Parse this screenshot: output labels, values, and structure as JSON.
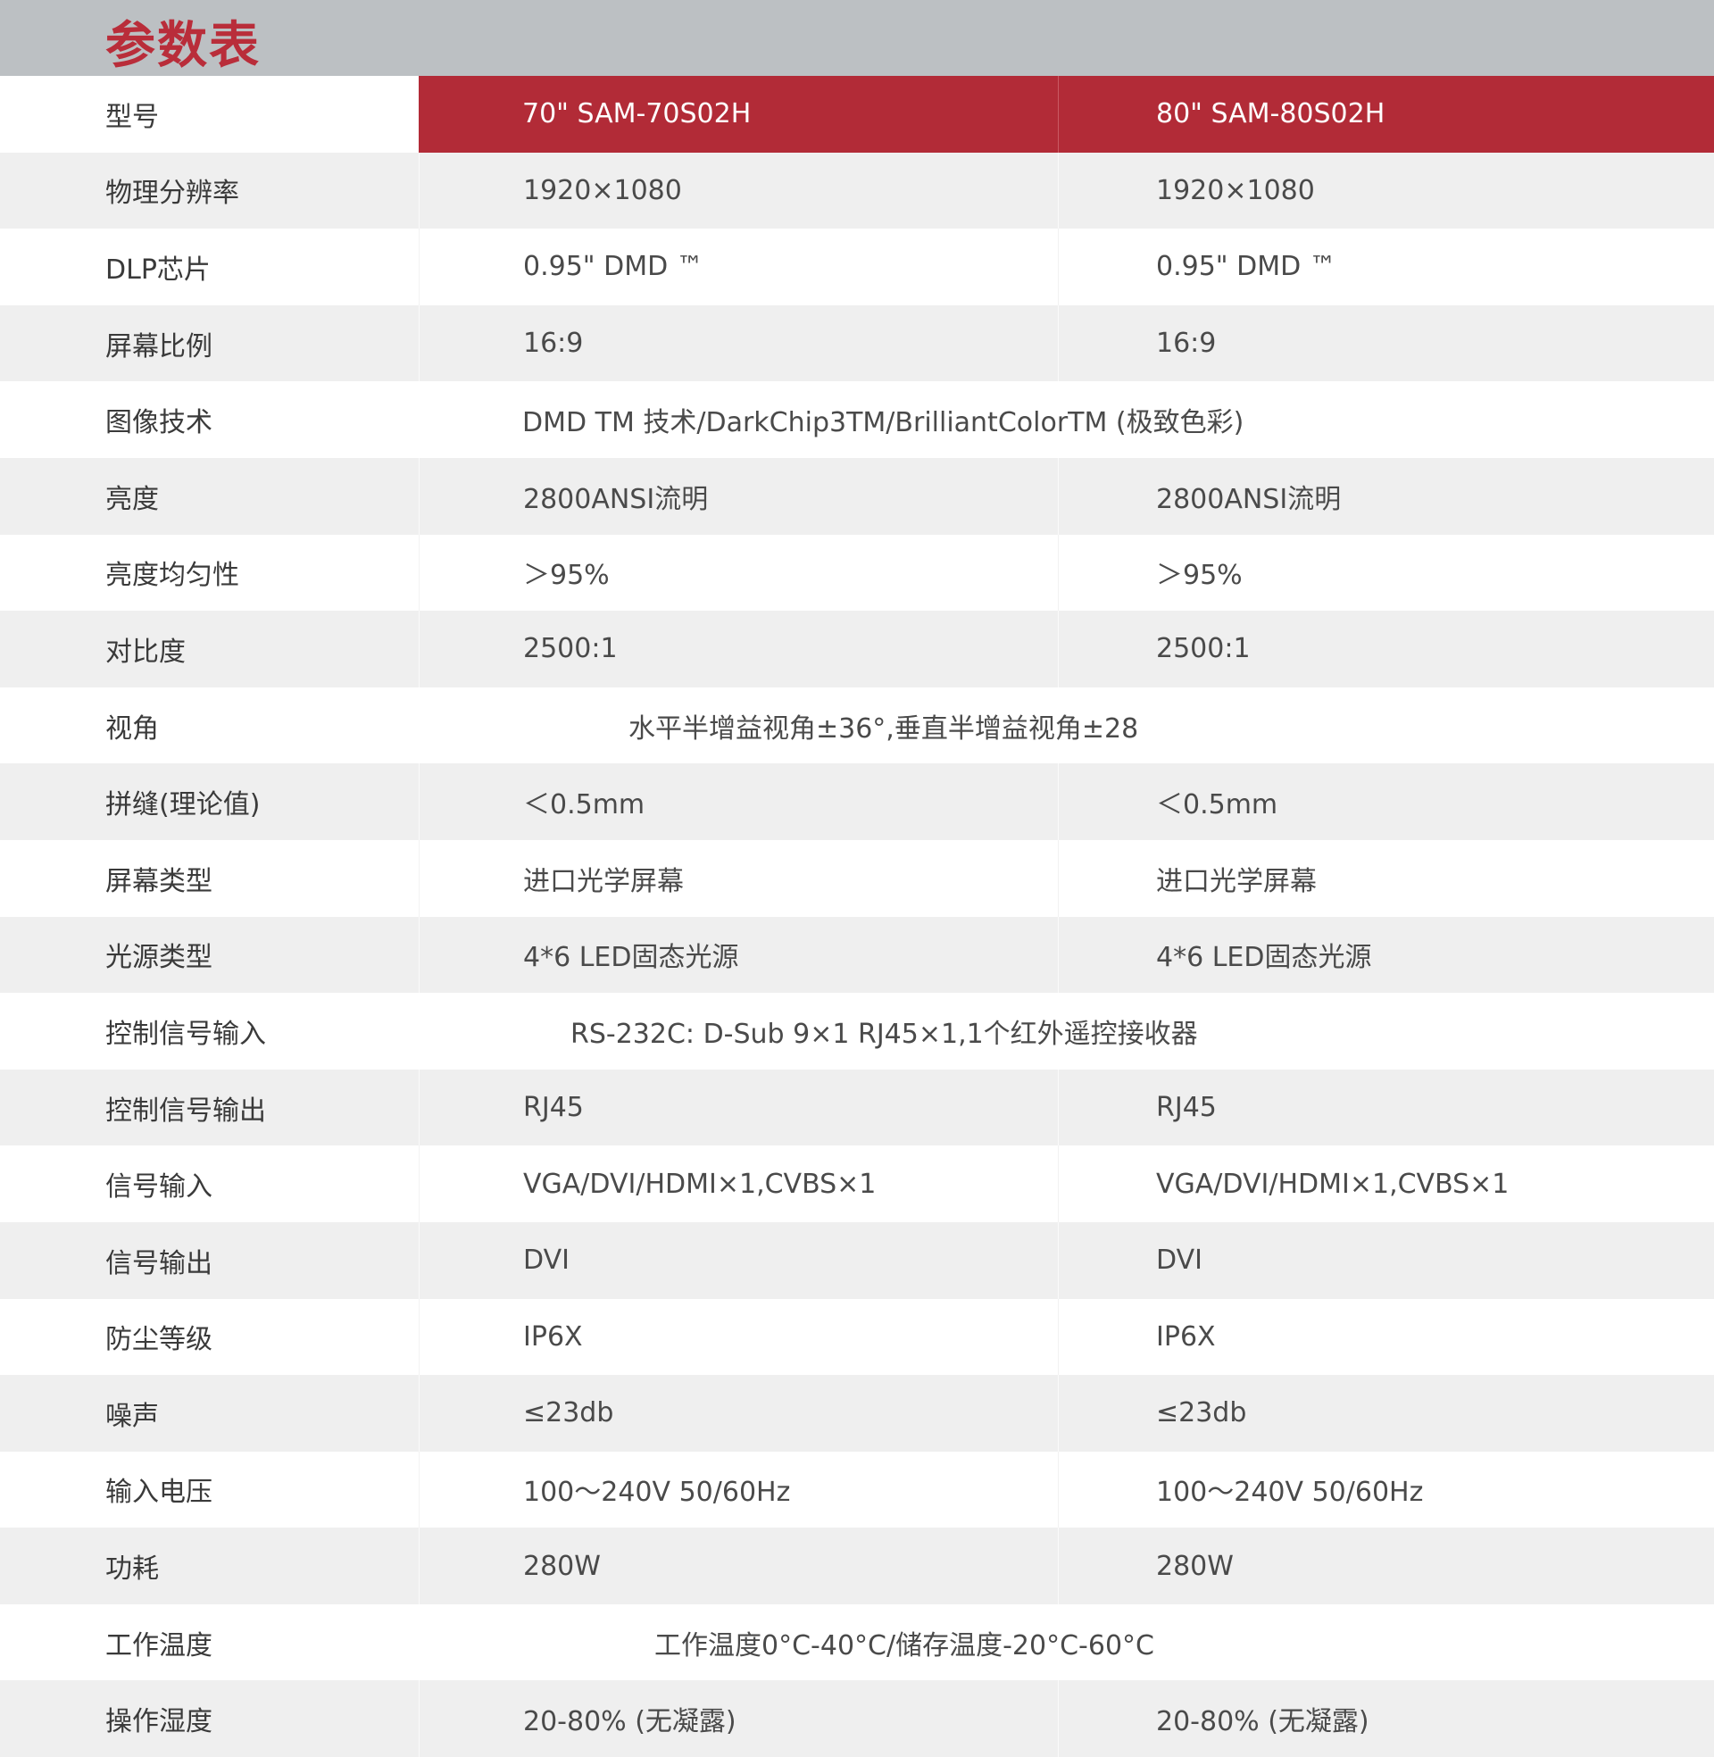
{
  "title": "参数表",
  "colors": {
    "header_bg": "#bcc0c3",
    "accent": "#b22b37",
    "title": "#b92d3a"
  },
  "models": [
    "70\" SAM-70S02H",
    "80\" SAM-80S02H"
  ],
  "model_label": "型号",
  "rows": [
    {
      "label": "物理分辨率",
      "v1": "1920×1080",
      "v2": "1920×1080"
    },
    {
      "label": "DLP芯片",
      "v1": "0.95\" DMD ™",
      "v2": "0.95\" DMD ™"
    },
    {
      "label": "屏幕比例",
      "v1": "16:9",
      "v2": "16:9"
    },
    {
      "label": "图像技术",
      "span": "DMD TM 技术/DarkChip3TM/BrilliantColorTM (极致色彩)"
    },
    {
      "label": "亮度",
      "v1": "2800ANSI流明",
      "v2": "2800ANSI流明"
    },
    {
      "label": "亮度均匀性",
      "v1": "＞95%",
      "v2": "＞95%"
    },
    {
      "label": "对比度",
      "v1": "2500:1",
      "v2": "2500:1"
    },
    {
      "label": "视角",
      "span": "水平半增益视角±36°,垂直半增益视角±28"
    },
    {
      "label": "拼缝(理论值)",
      "v1": "＜0.5mm",
      "v2": "＜0.5mm"
    },
    {
      "label": "屏幕类型",
      "v1": "进口光学屏幕",
      "v2": "进口光学屏幕"
    },
    {
      "label": "光源类型",
      "v1": "4*6 LED固态光源",
      "v2": "4*6 LED固态光源"
    },
    {
      "label": "控制信号输入",
      "span": "RS-232C: D-Sub 9×1 RJ45×1,1个红外遥控接收器"
    },
    {
      "label": "控制信号输出",
      "v1": "RJ45",
      "v2": "RJ45"
    },
    {
      "label": "信号输入",
      "v1": "VGA/DVI/HDMI×1,CVBS×1",
      "v2": "VGA/DVI/HDMI×1,CVBS×1"
    },
    {
      "label": "信号输出",
      "v1": "DVI",
      "v2": "DVI"
    },
    {
      "label": "防尘等级",
      "v1": "IP6X",
      "v2": "IP6X"
    },
    {
      "label": "噪声",
      "v1": "≤23db",
      "v2": "≤23db"
    },
    {
      "label": "输入电压",
      "v1": "100～240V 50/60Hz",
      "v2": "100～240V 50/60Hz"
    },
    {
      "label": "功耗",
      "v1": "280W",
      "v2": "280W"
    },
    {
      "label": "工作温度",
      "span": "工作温度0°C-40°C/储存温度-20°C-60°C"
    },
    {
      "label": "操作湿度",
      "v1": "20-80% (无凝露)",
      "v2": "20-80% (无凝露)"
    }
  ]
}
